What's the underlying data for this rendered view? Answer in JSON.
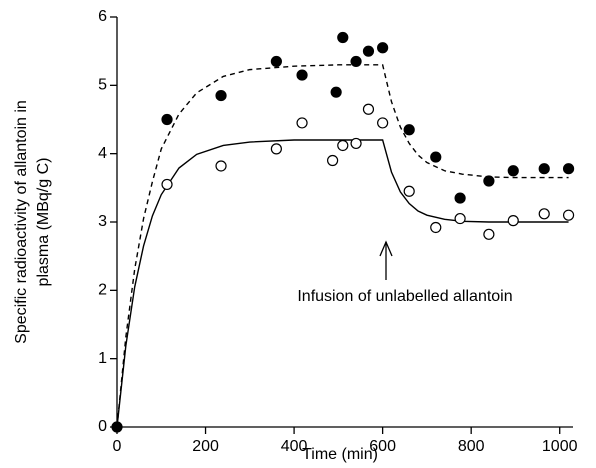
{
  "chart_data": {
    "type": "scatter",
    "x_label": "Time (min)",
    "y_label": [
      "Specific radioactivity of allantoin in",
      "plasma (MBq/g C)"
    ],
    "annotation": "Infusion of unlabelled allantoin",
    "xlim": [
      0,
      1030
    ],
    "xticks": [
      0,
      200,
      400,
      600,
      800,
      1000
    ],
    "ylim": [
      0,
      6
    ],
    "yticks": [
      0,
      1,
      2,
      3,
      4,
      5,
      6
    ],
    "color": "#000000",
    "series": [
      {
        "marker": "filled",
        "x": [
          0,
          113,
          235,
          360,
          418,
          495,
          510,
          540,
          568,
          600,
          660,
          720,
          775,
          840,
          895,
          965,
          1020
        ],
        "values": [
          0,
          4.5,
          4.85,
          5.35,
          5.15,
          4.9,
          5.7,
          5.35,
          5.5,
          5.55,
          4.35,
          3.95,
          3.35,
          3.6,
          3.75,
          3.78,
          3.78
        ]
      },
      {
        "marker": "open",
        "x": [
          113,
          235,
          360,
          418,
          487,
          510,
          540,
          568,
          600,
          660,
          720,
          775,
          840,
          895,
          965,
          1020
        ],
        "values": [
          3.55,
          3.82,
          4.07,
          4.45,
          3.9,
          4.12,
          4.15,
          4.65,
          4.45,
          3.45,
          2.92,
          3.05,
          2.82,
          3.02,
          3.12,
          3.1
        ]
      },
      {
        "line": "dashed",
        "x": [
          0,
          20,
          40,
          60,
          80,
          100,
          140,
          180,
          240,
          300,
          400,
          500,
          600,
          620,
          640,
          660,
          680,
          700,
          740,
          780,
          840,
          900,
          1020
        ],
        "values": [
          0,
          1.32,
          2.31,
          3.05,
          3.59,
          4.07,
          4.58,
          4.89,
          5.13,
          5.23,
          5.28,
          5.3,
          5.3,
          4.76,
          4.39,
          4.15,
          3.98,
          3.87,
          3.75,
          3.7,
          3.66,
          3.65,
          3.65
        ]
      },
      {
        "line": "solid",
        "x": [
          0,
          20,
          40,
          60,
          80,
          100,
          140,
          180,
          240,
          300,
          400,
          500,
          600,
          620,
          640,
          660,
          680,
          700,
          740,
          780,
          840,
          900,
          1020
        ],
        "values": [
          0,
          1.19,
          2.05,
          2.65,
          3.09,
          3.4,
          3.79,
          3.99,
          4.12,
          4.17,
          4.2,
          4.2,
          4.2,
          3.73,
          3.44,
          3.27,
          3.16,
          3.1,
          3.04,
          3.01,
          3.0,
          3.0,
          3.0
        ]
      }
    ]
  }
}
